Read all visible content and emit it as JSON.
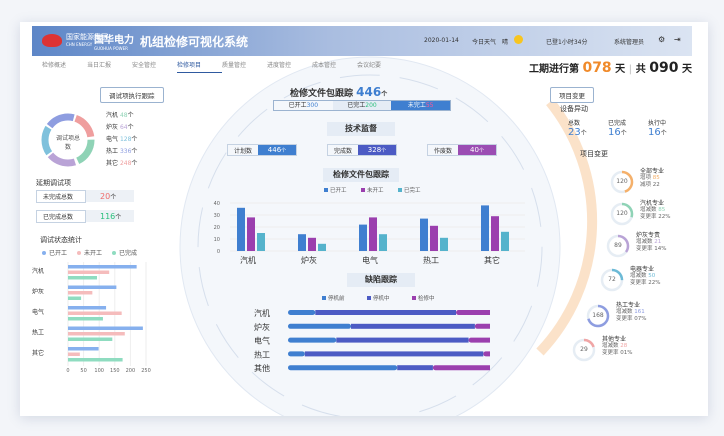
{
  "header": {
    "brand_small": "国家能源集团",
    "brand_small_en": "CHN ENERGY",
    "brand": "国华电力",
    "brand_en": "GUOHUA POWER",
    "title": "机组检修可视化系统",
    "date": "2020-01-14",
    "weather_label": "今日天气",
    "weather": "晴",
    "login": "已登1小时34分",
    "user": "系统管理员"
  },
  "nav": [
    "检修概述",
    "当日汇报",
    "安全管控",
    "检修项目",
    "质量管控",
    "进度管控",
    "成本管控",
    "会议纪要"
  ],
  "active_tab": "检修项目",
  "period": {
    "prefix": "工期进行第",
    "day": "078",
    "unit": "天",
    "total_prefix": "共",
    "total": "090",
    "total_unit": "天"
  },
  "left": {
    "title": "调试项执行跟踪",
    "donut_label": "调试项总数",
    "items": [
      {
        "name": "汽机",
        "value": "48",
        "unit": "个",
        "color": "#8fd3b6"
      },
      {
        "name": "炉灰",
        "value": "64",
        "unit": "个",
        "color": "#b9a3d6"
      },
      {
        "name": "电气",
        "value": "128",
        "unit": "个",
        "color": "#7fc1dc"
      },
      {
        "name": "热工",
        "value": "336",
        "unit": "个",
        "color": "#8e9de0"
      },
      {
        "name": "其它",
        "value": "248",
        "unit": "个",
        "color": "#ef9e9e"
      }
    ],
    "delay_title": "延期调试项",
    "delay": [
      {
        "label": "未完成总数",
        "value": "20",
        "unit": "个",
        "color": "#ef6b6b"
      },
      {
        "label": "已完成总数",
        "value": "116",
        "unit": "个",
        "color": "#2bbf7c"
      }
    ],
    "stat_title": "调试状态统计"
  },
  "center": {
    "title": "检修文件包跟踪",
    "total": "446",
    "unit": "个",
    "seg": [
      {
        "label": "已开工",
        "value": "300"
      },
      {
        "label": "已完工",
        "value": "200"
      },
      {
        "label": "未完工",
        "value": "55"
      }
    ],
    "tech_title": "技术监督",
    "tech": [
      {
        "label": "计划数",
        "value": "446",
        "unit": "个",
        "color": "#3f7fd0"
      },
      {
        "label": "完成数",
        "value": "328",
        "unit": "个",
        "color": "#4c5bc4"
      },
      {
        "label": "作废数",
        "value": "40",
        "unit": "个",
        "color": "#9b4db3"
      }
    ],
    "chart_title": "检修文件包跟踪",
    "defect_title": "缺陷跟踪"
  },
  "right": {
    "title": "项目变更",
    "equip_title": "设备异动",
    "equip": [
      {
        "label": "总数",
        "value": "23",
        "unit": "个"
      },
      {
        "label": "已完成",
        "value": "16",
        "unit": "个"
      },
      {
        "label": "执行中",
        "value": "16",
        "unit": "个"
      }
    ],
    "change_title": "项目变更",
    "items": [
      {
        "name": "全部专业",
        "value": "120",
        "k1": "增项",
        "v1": "85",
        "k2": "减项",
        "v2": "22",
        "color": "#f5b06a",
        "frac": 0.45
      },
      {
        "name": "汽机专业",
        "value": "120",
        "k1": "增减数",
        "v1": "85",
        "k2": "变更率",
        "v2": "22%",
        "color": "#8fd3b6",
        "frac": 0.3
      },
      {
        "name": "炉灰专责",
        "value": "89",
        "k1": "增减数",
        "v1": "21",
        "k2": "变更率",
        "v2": "14%",
        "color": "#b9a3d6",
        "frac": 0.35
      },
      {
        "name": "电器专业",
        "value": "72",
        "k1": "增减数",
        "v1": "50",
        "k2": "变更率",
        "v2": "22%",
        "color": "#6cbad6",
        "frac": 0.25
      },
      {
        "name": "热工专业",
        "value": "168",
        "k1": "增减数",
        "v1": "161",
        "k2": "变更率",
        "v2": "07%",
        "color": "#8e9de0",
        "frac": 0.7
      },
      {
        "name": "其他专业",
        "value": "29",
        "k1": "增减数",
        "v1": "28",
        "k2": "变更率",
        "v2": "01%",
        "color": "#f0a5a5",
        "frac": 0.2
      }
    ]
  },
  "chart_data": [
    {
      "type": "bar",
      "orientation": "horizontal",
      "title": "调试状态统计",
      "categories": [
        "汽机",
        "炉灰",
        "电气",
        "热工",
        "其它"
      ],
      "xlim": [
        0,
        250
      ],
      "ticks": [
        "0",
        "50",
        "100",
        "150",
        "200",
        "250"
      ],
      "legend": "top",
      "series": [
        {
          "name": "已开工",
          "color": "#86b0ee",
          "values": [
            220,
            155,
            122,
            240,
            98
          ]
        },
        {
          "name": "未开工",
          "color": "#f5bcbc",
          "values": [
            132,
            78,
            172,
            182,
            38
          ]
        },
        {
          "name": "已完成",
          "color": "#8fdcc0",
          "values": [
            93,
            42,
            112,
            142,
            175
          ]
        }
      ]
    },
    {
      "type": "bar",
      "title": "检修文件包跟踪",
      "categories": [
        "汽机",
        "炉灰",
        "电气",
        "热工",
        "其它"
      ],
      "ylim": [
        0,
        40
      ],
      "ticks": [
        "0",
        "10",
        "20",
        "30",
        "40"
      ],
      "legend": "top",
      "series": [
        {
          "name": "已开工",
          "color": "#3f7fd0",
          "values": [
            36,
            14,
            22,
            27,
            38
          ]
        },
        {
          "name": "未开工",
          "color": "#9b3fae",
          "values": [
            28,
            11,
            28,
            21,
            29
          ]
        },
        {
          "name": "已完工",
          "color": "#55b3cc",
          "values": [
            15,
            6,
            14,
            11,
            16
          ]
        }
      ]
    },
    {
      "type": "bar",
      "stacked": true,
      "orientation": "horizontal",
      "title": "缺陷跟踪",
      "categories": [
        "汽机",
        "炉灰",
        "电气",
        "热工",
        "其他"
      ],
      "legend": "top",
      "series": [
        {
          "name": "停机前",
          "color": "#3f7fd0",
          "values": [
            13,
            30,
            23,
            8,
            52
          ]
        },
        {
          "name": "停机中",
          "color": "#4c5bc4",
          "values": [
            67,
            59,
            63,
            85,
            17
          ]
        },
        {
          "name": "检修中",
          "color": "#9b3fae",
          "values": [
            20,
            11,
            14,
            7,
            31
          ]
        }
      ]
    }
  ]
}
